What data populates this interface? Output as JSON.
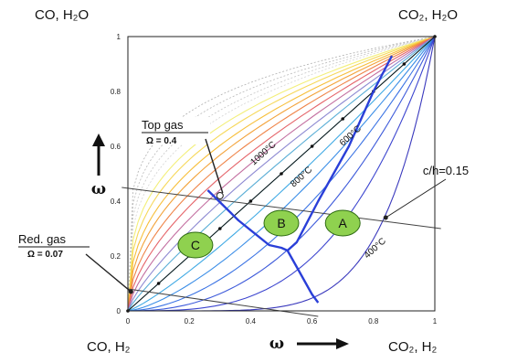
{
  "corners": {
    "top_left": "CO, H₂O",
    "top_right": "CO₂, H₂O",
    "bottom_left": "CO, H₂",
    "bottom_right": "CO₂, H₂"
  },
  "chart_data": {
    "type": "line",
    "xlim": [
      0,
      1
    ],
    "ylim": [
      0,
      1
    ],
    "x_ticks": [
      "0",
      "0.2",
      "0.4",
      "0.6",
      "0.8",
      "1"
    ],
    "y_ticks": [
      "0",
      "0.2",
      "0.4",
      "0.6",
      "0.8",
      "1"
    ],
    "xlabel": "ω",
    "ylabel": "ω",
    "grid": false,
    "isotherm_labels": [
      {
        "text": "1000°C",
        "x": 0.41,
        "y": 0.53
      },
      {
        "text": "800°C",
        "x": 0.54,
        "y": 0.45
      },
      {
        "text": "600°C",
        "x": 0.7,
        "y": 0.6
      },
      {
        "text": "400°C",
        "x": 0.78,
        "y": 0.19
      }
    ],
    "isotherm_family": {
      "colors": [
        "#b0b0b0",
        "#b8b8b8",
        "#c6c6c6",
        "#d4d4d4",
        "#f3ef7a",
        "#f6d85a",
        "#f7bf3a",
        "#f3a33a",
        "#ef8448",
        "#e56469",
        "#c36fa0",
        "#8e8ad2",
        "#5aaed6",
        "#3cc0dc",
        "#3fa9e4",
        "#3b8ee7",
        "#3b73e4",
        "#3d5ada",
        "#3c45cf",
        "#3a39bd"
      ],
      "exponents": [
        0.2,
        0.23,
        0.26,
        0.29,
        0.33,
        0.37,
        0.42,
        0.47,
        0.53,
        0.6,
        0.68,
        0.77,
        0.87,
        1.0,
        1.2,
        1.45,
        1.8,
        2.3,
        3.2,
        6.0
      ]
    },
    "operating_line": {
      "name": "",
      "points": [
        [
          0,
          0
        ],
        [
          0.1,
          0.1
        ],
        [
          0.2,
          0.2
        ],
        [
          0.3,
          0.3
        ],
        [
          0.4,
          0.4
        ],
        [
          0.5,
          0.5
        ],
        [
          0.6,
          0.6
        ],
        [
          0.7,
          0.7
        ],
        [
          0.8,
          0.8
        ],
        [
          0.9,
          0.9
        ],
        [
          1,
          1
        ]
      ]
    },
    "chord_line": {
      "name": "c/h=0.15",
      "points": [
        [
          -0.02,
          0.45
        ],
        [
          1.02,
          0.3
        ]
      ]
    },
    "red_gas_line": {
      "points": [
        [
          0,
          0.08
        ],
        [
          0.62,
          -0.02
        ]
      ]
    },
    "boundaries": [
      [
        [
          0.26,
          0.44
        ],
        [
          0.36,
          0.33
        ],
        [
          0.46,
          0.24
        ],
        [
          0.5,
          0.23
        ],
        [
          0.52,
          0.22
        ]
      ],
      [
        [
          0.52,
          0.22
        ],
        [
          0.55,
          0.25
        ],
        [
          0.62,
          0.4
        ],
        [
          0.72,
          0.6
        ],
        [
          0.8,
          0.8
        ],
        [
          0.86,
          0.93
        ]
      ],
      [
        [
          0.52,
          0.22
        ],
        [
          0.56,
          0.14
        ],
        [
          0.6,
          0.06
        ],
        [
          0.62,
          0.03
        ]
      ]
    ],
    "zones": [
      {
        "label": "A",
        "x": 0.7,
        "y": 0.32
      },
      {
        "label": "B",
        "x": 0.5,
        "y": 0.32
      },
      {
        "label": "C",
        "x": 0.22,
        "y": 0.24
      }
    ],
    "annotations": {
      "top_gas": {
        "label": "Top gas",
        "sub": "Ω = 0.4",
        "point": [
          0.3,
          0.42
        ]
      },
      "red_gas": {
        "label": "Red. gas",
        "sub": "Ω = 0.07",
        "point": [
          0.01,
          0.07
        ]
      },
      "chord": {
        "label": "c/h=0.15",
        "point": [
          0.84,
          0.34
        ]
      }
    }
  }
}
